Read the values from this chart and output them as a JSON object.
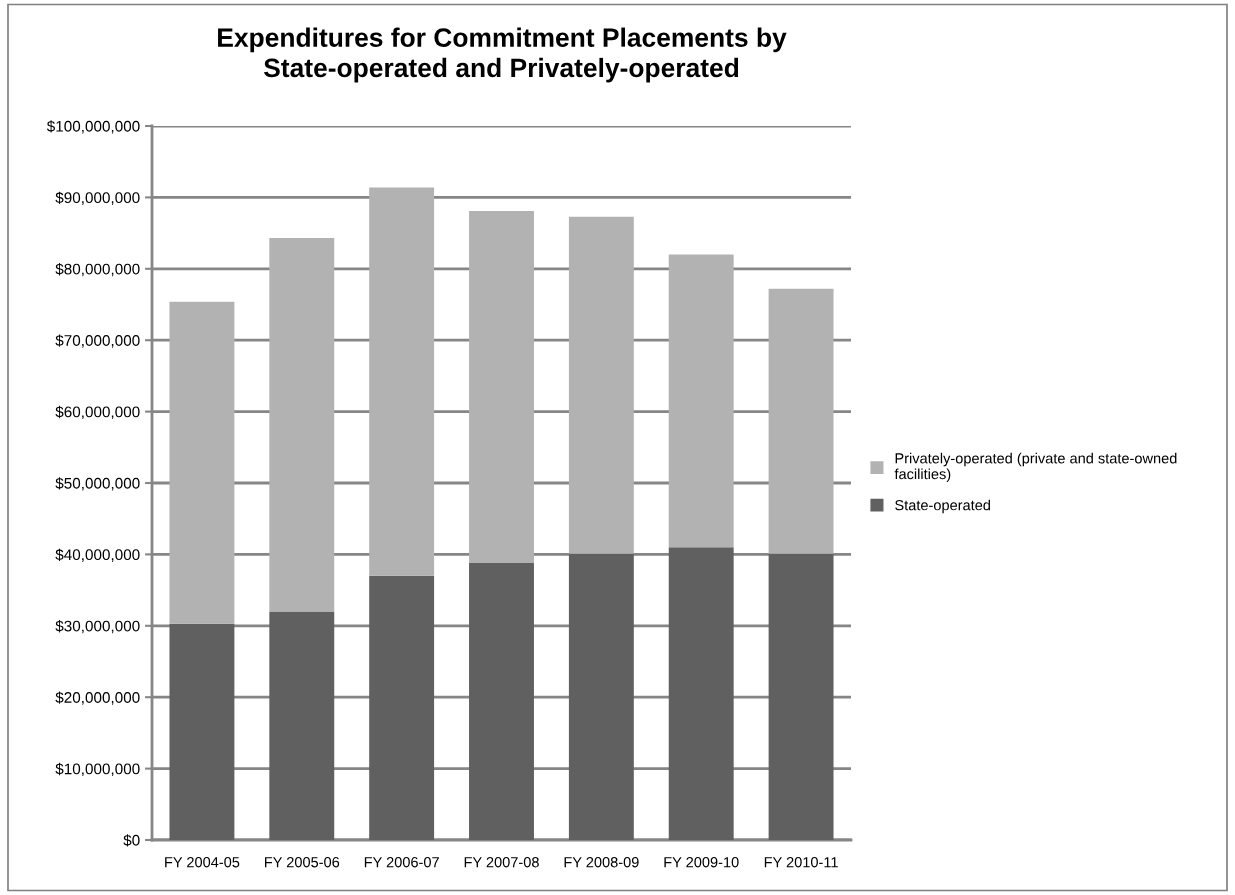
{
  "chart_data": {
    "type": "bar",
    "title": "Expenditures for Commitment Placements by\nState-operated and Privately-operated",
    "categories": [
      "FY 2004-05",
      "FY 2005-06",
      "FY 2006-07",
      "FY 2007-08",
      "FY 2008-09",
      "FY 2009-10",
      "FY 2010-11"
    ],
    "stacked": true,
    "series": [
      {
        "name": "State-operated",
        "color": "#606060",
        "values": [
          30300000,
          32000000,
          37000000,
          38800000,
          40100000,
          41000000,
          40100000
        ]
      },
      {
        "name": "Privately-operated (private and state-owned facilities)",
        "color": "#b2b2b2",
        "values": [
          45100000,
          52300000,
          54400000,
          49300000,
          47200000,
          41000000,
          37100000
        ]
      }
    ],
    "ylim": [
      0,
      100000000
    ],
    "yticks": [
      {
        "value": 0,
        "label": "$0"
      },
      {
        "value": 10000000,
        "label": "$10,000,000"
      },
      {
        "value": 20000000,
        "label": "$20,000,000"
      },
      {
        "value": 30000000,
        "label": "$30,000,000"
      },
      {
        "value": 40000000,
        "label": "$40,000,000"
      },
      {
        "value": 50000000,
        "label": "$50,000,000"
      },
      {
        "value": 60000000,
        "label": "$60,000,000"
      },
      {
        "value": 70000000,
        "label": "$70,000,000"
      },
      {
        "value": 80000000,
        "label": "$80,000,000"
      },
      {
        "value": 90000000,
        "label": "$90,000,000"
      },
      {
        "value": 100000000,
        "label": "$100,000,000"
      }
    ],
    "grid": "y",
    "legend": "right"
  }
}
